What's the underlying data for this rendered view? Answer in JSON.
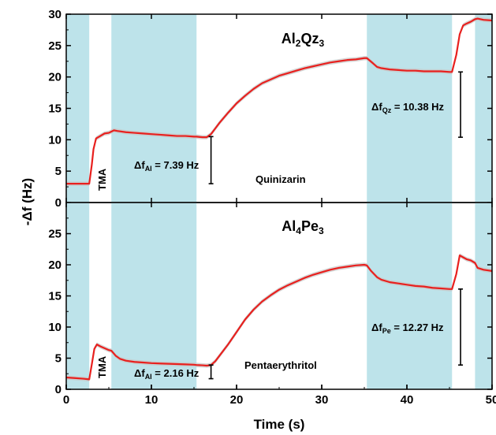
{
  "chart_data": [
    {
      "type": "line",
      "title": "Al₂Qz₃",
      "title_parts": [
        {
          "t": "Al",
          "sub": false
        },
        {
          "t": "2",
          "sub": true
        },
        {
          "t": "Qz",
          "sub": false
        },
        {
          "t": "3",
          "sub": true
        }
      ],
      "xlabel": "Time (s)",
      "ylabel": "-Δf (Hz)",
      "xlim": [
        0,
        50
      ],
      "ylim": [
        0,
        30
      ],
      "yticks": [
        0,
        5,
        10,
        15,
        20,
        25,
        30
      ],
      "shaded_intervals": [
        [
          0,
          2.7
        ],
        [
          5.3,
          15.3
        ],
        [
          35.3,
          45.3
        ],
        [
          48,
          50
        ]
      ],
      "shade_color": "#bde3ea",
      "line_color": "#e8201e",
      "band_color": "#c8c8c8",
      "series": [
        {
          "x": [
            0,
            2.7,
            3.0,
            3.2,
            3.5,
            4.0,
            4.5,
            5.0,
            5.3,
            5.6,
            6.0,
            7,
            8,
            9,
            10,
            11,
            12,
            13,
            14,
            15,
            15.3,
            16,
            16.5,
            17,
            17.5,
            18,
            19,
            20,
            21,
            22,
            23,
            24,
            25,
            26,
            27,
            28,
            29,
            30,
            31,
            32,
            33,
            34,
            35,
            35.3,
            36,
            36.5,
            37,
            38,
            39,
            40,
            41,
            42,
            43,
            44,
            45,
            45.3,
            45.8,
            46.2,
            46.6,
            47,
            47.5,
            48,
            48.3,
            49,
            50
          ],
          "y": [
            3.0,
            3.0,
            6.0,
            8.5,
            10.2,
            10.6,
            11.0,
            11.1,
            11.3,
            11.5,
            11.4,
            11.2,
            11.1,
            11.0,
            10.9,
            10.8,
            10.7,
            10.6,
            10.6,
            10.5,
            10.5,
            10.4,
            10.4,
            10.9,
            11.8,
            12.7,
            14.3,
            15.8,
            17.0,
            18.1,
            19.0,
            19.6,
            20.2,
            20.6,
            21.0,
            21.4,
            21.7,
            22.0,
            22.3,
            22.5,
            22.7,
            22.8,
            23.0,
            23.0,
            22.2,
            21.6,
            21.4,
            21.2,
            21.1,
            21.0,
            21.0,
            20.9,
            20.9,
            20.9,
            20.8,
            20.8,
            23.5,
            26.8,
            28.2,
            28.5,
            28.8,
            29.2,
            29.3,
            29.1,
            29.0
          ]
        }
      ],
      "annotations": [
        {
          "id": "tma",
          "text": "TMA"
        },
        {
          "id": "dfal",
          "base": "Δf",
          "sub": "Al",
          "tail": " = 7.39 Hz"
        },
        {
          "id": "dfqz",
          "base": "Δf",
          "sub": "Qz",
          "tail": " = 10.38 Hz"
        },
        {
          "id": "precursor",
          "text": "Quinizarin"
        }
      ],
      "error_bars": [
        {
          "x": 17.0,
          "y_low": 3.0,
          "y_high": 10.5
        },
        {
          "x": 46.3,
          "y_low": 10.4,
          "y_high": 20.8
        }
      ]
    },
    {
      "type": "line",
      "title": "Al₄Pe₃",
      "title_parts": [
        {
          "t": "Al",
          "sub": false
        },
        {
          "t": "4",
          "sub": true
        },
        {
          "t": "Pe",
          "sub": false
        },
        {
          "t": "3",
          "sub": true
        }
      ],
      "xlabel": "Time (s)",
      "ylabel": "-Δf (Hz)",
      "xlim": [
        0,
        50
      ],
      "ylim": [
        0,
        30
      ],
      "yticks": [
        0,
        5,
        10,
        15,
        20,
        25
      ],
      "xticks": [
        0,
        10,
        20,
        30,
        40,
        50
      ],
      "shaded_intervals": [
        [
          0,
          2.7
        ],
        [
          5.3,
          15.3
        ],
        [
          35.3,
          45.3
        ],
        [
          48,
          50
        ]
      ],
      "shade_color": "#bde3ea",
      "line_color": "#e8201e",
      "band_color": "#c8c8c8",
      "series": [
        {
          "x": [
            0,
            1,
            2,
            2.7,
            3.0,
            3.3,
            3.6,
            4.0,
            4.5,
            5.0,
            5.3,
            5.8,
            6.3,
            7,
            8,
            9,
            10,
            11,
            12,
            13,
            14,
            15,
            15.3,
            16,
            16.5,
            17,
            17.5,
            18,
            19,
            20,
            21,
            22,
            23,
            24,
            25,
            26,
            27,
            28,
            29,
            30,
            31,
            32,
            33,
            34,
            35,
            35.3,
            35.8,
            36.5,
            37,
            38,
            39,
            40,
            41,
            42,
            43,
            44,
            45,
            45.3,
            45.8,
            46.2,
            46.6,
            47,
            47.5,
            48,
            48.3,
            49,
            50
          ],
          "y": [
            1.9,
            1.8,
            1.7,
            1.6,
            4.0,
            6.5,
            7.2,
            6.9,
            6.6,
            6.3,
            6.2,
            5.4,
            4.9,
            4.6,
            4.4,
            4.3,
            4.2,
            4.15,
            4.1,
            4.05,
            4.0,
            3.95,
            3.9,
            3.85,
            3.8,
            3.9,
            4.5,
            5.4,
            7.2,
            9.2,
            11.2,
            12.8,
            14.1,
            15.1,
            16.0,
            16.7,
            17.3,
            17.9,
            18.4,
            18.8,
            19.2,
            19.5,
            19.7,
            19.9,
            20.0,
            19.9,
            19.0,
            18.0,
            17.6,
            17.2,
            17.0,
            16.8,
            16.6,
            16.5,
            16.3,
            16.2,
            16.1,
            16.1,
            18.5,
            21.5,
            21.2,
            20.9,
            20.7,
            20.3,
            19.5,
            19.2,
            19.0
          ]
        }
      ],
      "annotations": [
        {
          "id": "tma",
          "text": "TMA"
        },
        {
          "id": "dfal",
          "base": "Δf",
          "sub": "Al",
          "tail": " = 2.16 Hz"
        },
        {
          "id": "dfpe",
          "base": "Δf",
          "sub": "Pe",
          "tail": " = 12.27 Hz"
        },
        {
          "id": "precursor",
          "text": "Pentaerythritol"
        }
      ],
      "error_bars": [
        {
          "x": 17.0,
          "y_low": 1.7,
          "y_high": 3.9
        },
        {
          "x": 46.3,
          "y_low": 3.9,
          "y_high": 16.1
        }
      ]
    }
  ]
}
